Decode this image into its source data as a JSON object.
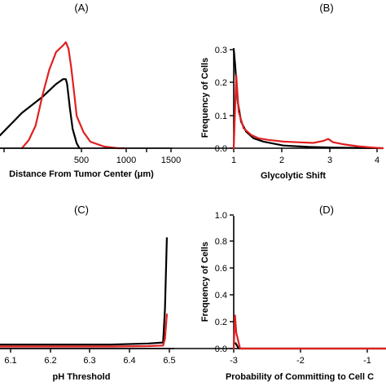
{
  "colors": {
    "black_series": "#000000",
    "red_series": "#e02020"
  },
  "chart_data": [
    {
      "panel": "(A)",
      "type": "line",
      "xlabel": "Distance From Tumor Center (μm)",
      "ylabel": "",
      "x_ticks": [
        "500",
        "1000",
        "1500"
      ],
      "xlim": [
        240,
        1500
      ],
      "ylim": [
        0,
        0.072
      ],
      "series": [
        {
          "color": "#000000",
          "x": [
            240,
            400,
            550,
            650,
            700,
            720,
            730,
            750,
            770,
            800,
            820
          ],
          "y": [
            0.008,
            0.022,
            0.032,
            0.04,
            0.043,
            0.043,
            0.04,
            0.025,
            0.012,
            0.003,
            0.0
          ]
        },
        {
          "color": "#e02020",
          "x": [
            400,
            450,
            500,
            550,
            600,
            650,
            700,
            720,
            740,
            760,
            780,
            800,
            850,
            900,
            1000,
            1100,
            1150
          ],
          "y": [
            0.0,
            0.005,
            0.014,
            0.033,
            0.049,
            0.06,
            0.064,
            0.066,
            0.062,
            0.05,
            0.035,
            0.02,
            0.01,
            0.004,
            0.001,
            0.0,
            0.0
          ]
        }
      ]
    },
    {
      "panel": "(B)",
      "type": "line",
      "xlabel": "Glycolytic Shift",
      "ylabel": "Frequency of Cells",
      "x_ticks": [
        "1",
        "2",
        "3",
        "4"
      ],
      "y_ticks": [
        "0.0",
        "0.1",
        "0.2",
        "0.3"
      ],
      "xlim": [
        1,
        4
      ],
      "ylim": [
        0,
        0.3
      ],
      "series": [
        {
          "color": "#000000",
          "x": [
            1,
            1.03,
            1.08,
            1.15,
            1.25,
            1.4,
            1.6,
            2.0,
            2.5,
            3.0,
            3.5,
            4.0
          ],
          "y": [
            0.3,
            0.25,
            0.14,
            0.08,
            0.05,
            0.03,
            0.02,
            0.008,
            0.004,
            0.002,
            0.001,
            0.0
          ]
        },
        {
          "color": "#e02020",
          "x": [
            1,
            1.05,
            1.1,
            1.2,
            1.35,
            1.5,
            1.7,
            2.0,
            2.3,
            2.6,
            2.8,
            2.9,
            3.0,
            3.2,
            3.5,
            3.8,
            4.0
          ],
          "y": [
            0.0,
            0.22,
            0.11,
            0.06,
            0.04,
            0.03,
            0.025,
            0.02,
            0.018,
            0.016,
            0.022,
            0.028,
            0.018,
            0.012,
            0.006,
            0.002,
            0.0
          ]
        }
      ]
    },
    {
      "panel": "(C)",
      "type": "line",
      "xlabel": "pH Threshold",
      "ylabel": "",
      "x_ticks": [
        "6.1",
        "6.2",
        "6.3",
        "6.4",
        "6.5"
      ],
      "xlim": [
        6.05,
        6.52
      ],
      "ylim": [
        0,
        0.6
      ],
      "series": [
        {
          "color": "#000000",
          "x": [
            6.05,
            6.15,
            6.25,
            6.35,
            6.45,
            6.49,
            6.495,
            6.5
          ],
          "y": [
            0.02,
            0.02,
            0.02,
            0.02,
            0.025,
            0.03,
            0.2,
            0.55
          ]
        },
        {
          "color": "#e02020",
          "x": [
            6.05,
            6.15,
            6.25,
            6.35,
            6.45,
            6.49,
            6.495,
            6.5
          ],
          "y": [
            0.01,
            0.01,
            0.01,
            0.01,
            0.012,
            0.015,
            0.05,
            0.17
          ]
        }
      ]
    },
    {
      "panel": "(D)",
      "type": "line",
      "xlabel": "Probability of Committing to Cell C",
      "ylabel": "Frequency of Cells",
      "x_ticks": [
        "-3",
        "-2",
        "-1"
      ],
      "y_ticks": [
        "0.0",
        "0.2",
        "0.4",
        "0.6",
        "0.8",
        "1.0"
      ],
      "xlim": [
        -3,
        -0.6
      ],
      "ylim": [
        0,
        1.0
      ],
      "series": [
        {
          "color": "#000000",
          "x": [
            -3.0,
            -2.97,
            -2.92,
            -2.9,
            -0.6
          ],
          "y": [
            0.04,
            0.04,
            0.0,
            0.0,
            0.0
          ]
        },
        {
          "color": "#e02020",
          "x": [
            -3.0,
            -2.98,
            -2.96,
            -2.9,
            -2.8,
            -0.6
          ],
          "y": [
            0.0,
            0.25,
            0.12,
            0.0,
            0.0,
            0.0
          ]
        }
      ]
    }
  ]
}
